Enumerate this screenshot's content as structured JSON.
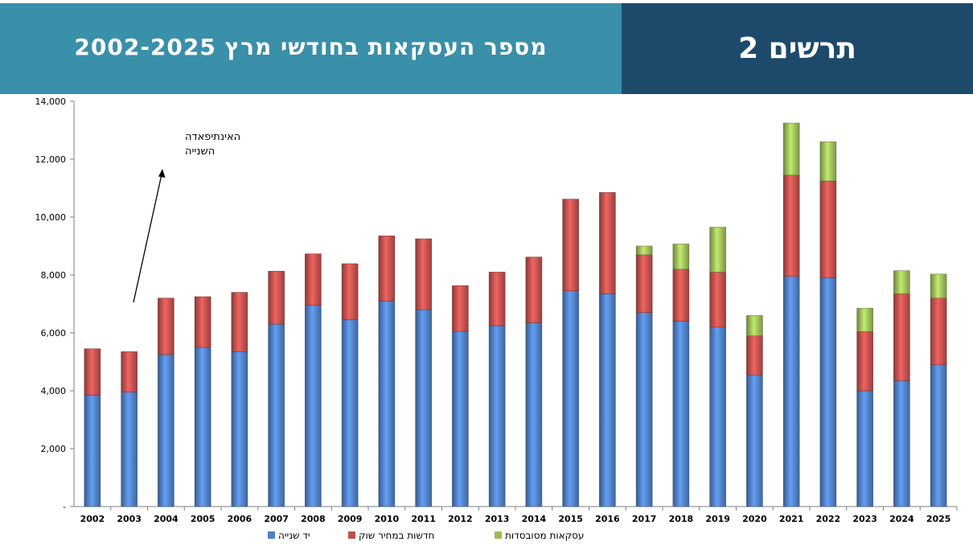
{
  "header": {
    "title": "מספר העסקאות בחודשי מרץ 2002-2025",
    "figure_label": "תרשים 2"
  },
  "chart_data": {
    "type": "bar",
    "stacked": true,
    "title": "",
    "xlabel": "",
    "ylabel": "",
    "ylim": [
      0,
      14000
    ],
    "y_ticks": [
      "-",
      "2,000",
      "4,000",
      "6,000",
      "8,000",
      "10,000",
      "12,000",
      "14,000"
    ],
    "categories": [
      "2002",
      "2003",
      "2004",
      "2005",
      "2006",
      "2007",
      "2008",
      "2009",
      "2010",
      "2011",
      "2012",
      "2013",
      "2014",
      "2015",
      "2016",
      "2017",
      "2018",
      "2019",
      "2020",
      "2021",
      "2022",
      "2023",
      "2024",
      "2025"
    ],
    "series": [
      {
        "name": "יד שנייה",
        "color": "#4f7fc3",
        "values": [
          3850,
          3950,
          5250,
          5500,
          5350,
          6300,
          6950,
          6450,
          7100,
          6800,
          6050,
          6250,
          6350,
          7450,
          7350,
          6700,
          6400,
          6200,
          4550,
          7950,
          7900,
          4000,
          4350,
          4900
        ]
      },
      {
        "name": "חדשות במחיר שוק",
        "color": "#c0504d",
        "values": [
          1600,
          1400,
          1950,
          1750,
          2050,
          1830,
          1780,
          1940,
          2250,
          2450,
          1580,
          1850,
          2270,
          3170,
          3500,
          2000,
          1800,
          1900,
          1350,
          3500,
          3350,
          2050,
          3000,
          2300
        ]
      },
      {
        "name": "עסקאות מסובסדות",
        "color": "#9bbb59",
        "values": [
          0,
          0,
          0,
          0,
          0,
          0,
          0,
          0,
          0,
          0,
          0,
          0,
          0,
          0,
          0,
          300,
          870,
          1550,
          700,
          1800,
          1350,
          800,
          800,
          830
        ]
      }
    ],
    "legend_position": "bottom",
    "grid": false,
    "annotation": {
      "text_line1": "האינתיפאדה",
      "text_line2": "השנייה"
    }
  }
}
